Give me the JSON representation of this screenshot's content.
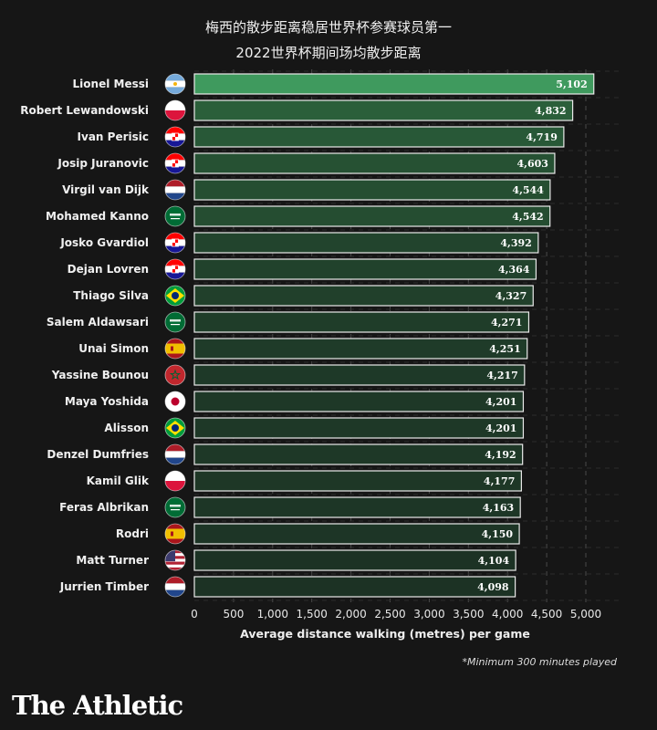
{
  "chart_data": {
    "type": "bar",
    "orientation": "horizontal",
    "title": "梅西的散步距离稳居世界杯参赛球员第一",
    "subtitle": "2022世界杯期间场均散步距离",
    "xlabel": "Average distance walking (metres) per game",
    "ylabel": "",
    "xlim": [
      0,
      5000
    ],
    "xticks": [
      0,
      500,
      1000,
      1500,
      2000,
      2500,
      3000,
      3500,
      4000,
      4500,
      5000
    ],
    "xtick_labels": [
      "0",
      "500",
      "1,000",
      "1,500",
      "2,000",
      "2,500",
      "3,000",
      "3,500",
      "4,000",
      "4,500",
      "5,000"
    ],
    "grid": true,
    "categories": [
      "Lionel Messi",
      "Robert Lewandowski",
      "Ivan Perisic",
      "Josip Juranovic",
      "Virgil van Dijk",
      "Mohamed Kanno",
      "Josko Gvardiol",
      "Dejan Lovren",
      "Thiago Silva",
      "Salem Aldawsari",
      "Unai Simon",
      "Yassine Bounou",
      "Maya Yoshida",
      "Alisson",
      "Denzel Dumfries",
      "Kamil Glik",
      "Feras Albrikan",
      "Rodri",
      "Matt Turner",
      "Jurrien Timber"
    ],
    "values": [
      5102,
      4832,
      4719,
      4603,
      4544,
      4542,
      4392,
      4364,
      4327,
      4271,
      4251,
      4217,
      4201,
      4201,
      4192,
      4177,
      4163,
      4150,
      4104,
      4098
    ],
    "value_labels": [
      "5,102",
      "4,832",
      "4,719",
      "4,603",
      "4,544",
      "4,542",
      "4,392",
      "4,364",
      "4,327",
      "4,271",
      "4,251",
      "4,217",
      "4,201",
      "4,201",
      "4,192",
      "4,177",
      "4,163",
      "4,150",
      "4,104",
      "4,098"
    ],
    "flags": [
      "argentina",
      "poland",
      "croatia",
      "croatia",
      "netherlands",
      "saudi-arabia",
      "croatia",
      "croatia",
      "brazil",
      "saudi-arabia",
      "spain",
      "morocco",
      "japan",
      "brazil",
      "netherlands",
      "poland",
      "saudi-arabia",
      "spain",
      "usa",
      "netherlands"
    ],
    "highlight_color": "#3f9a5e"
  },
  "footnote": "*Minimum 300 minutes played",
  "brand": "The Athletic"
}
